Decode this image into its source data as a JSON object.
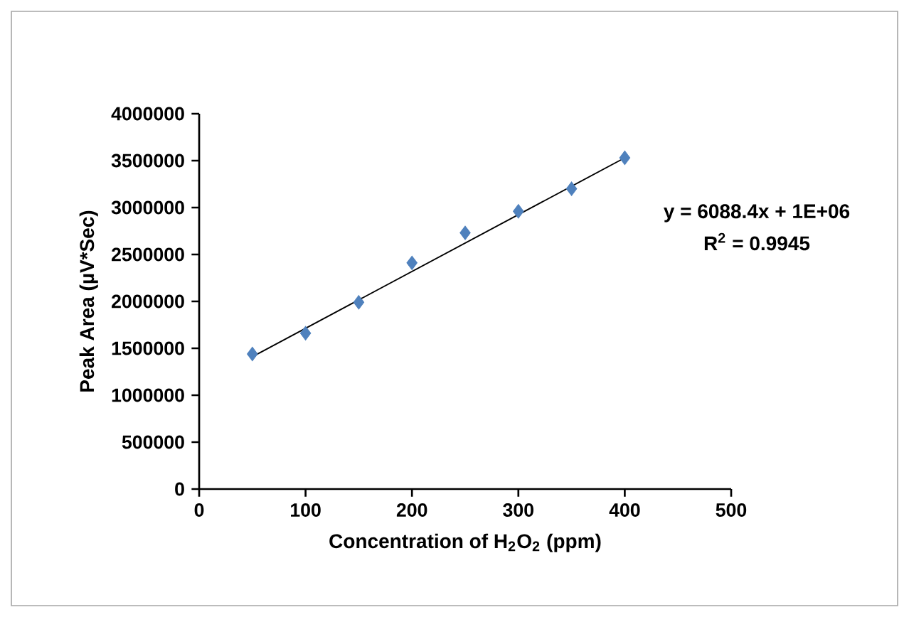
{
  "chart_data": {
    "type": "scatter",
    "xlabel": "Concentration of H$_{2}$O$_{2}$ (ppm)",
    "ylabel": "Peak Area (µV*Sec)",
    "series": [
      {
        "color": "#4f81bd",
        "marker": "diamond",
        "x": [
          50,
          100,
          150,
          200,
          250,
          300,
          350,
          400
        ],
        "values": [
          1440000,
          1660000,
          1990000,
          2410000,
          2730000,
          2960000,
          3200000,
          3530000
        ]
      },
      {
        "type": "line",
        "color": "#000000",
        "marker": "none",
        "x": [
          50,
          400
        ],
        "values": [
          1410000,
          3530000
        ]
      }
    ],
    "annotations": [
      "y = 6088.4x + 1E+06",
      "R$^{2}$ = 0.9945"
    ],
    "xlim": [
      0,
      500
    ],
    "xticks": [
      0,
      100,
      200,
      300,
      400,
      500
    ],
    "ylim": [
      0,
      4000000
    ],
    "yticks": [
      0,
      500000,
      1000000,
      1500000,
      2000000,
      2500000,
      3000000,
      3500000,
      4000000
    ],
    "grid": false
  }
}
